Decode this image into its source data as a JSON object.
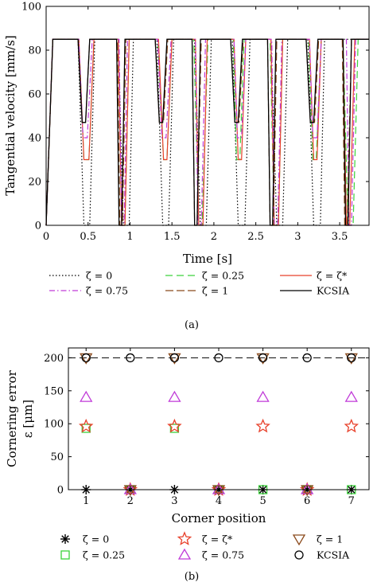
{
  "chart_data": [
    {
      "type": "line",
      "panel_label": "(a)",
      "xlabel": "Time [s]",
      "ylabel": "Tangential velocity [mm/s]",
      "xlim": [
        0,
        3.85
      ],
      "ylim": [
        0,
        100
      ],
      "xticks": [
        0,
        0.5,
        1,
        1.5,
        2,
        2.5,
        3,
        3.5
      ],
      "xtick_labels": [
        "0",
        "0.5",
        "1",
        "1.5",
        "2",
        "2.5",
        "3",
        "3.5"
      ],
      "yticks": [
        0,
        20,
        40,
        60,
        80,
        100
      ],
      "ytick_labels": [
        "0",
        "20",
        "40",
        "60",
        "80",
        "100"
      ],
      "grid": false,
      "legend_position": "below",
      "series": [
        {
          "name": "ζ = 0",
          "color": "#000000",
          "dash": "1.5,2.5",
          "x": [
            0,
            0.08,
            0.38,
            0.45,
            0.52,
            0.58,
            0.86,
            0.92,
            0.99,
            1.04,
            1.32,
            1.39,
            1.46,
            1.52,
            1.77,
            1.84,
            1.91,
            1.97,
            2.22,
            2.29,
            2.37,
            2.43,
            2.68,
            2.75,
            2.82,
            2.88,
            3.12,
            3.19,
            3.27,
            3.32,
            3.85
          ],
          "y": [
            0,
            85,
            85,
            0,
            0,
            85,
            85,
            0,
            0,
            85,
            85,
            0,
            0,
            85,
            85,
            0,
            0,
            85,
            85,
            0,
            0,
            85,
            85,
            0,
            0,
            85,
            85,
            0,
            0,
            85,
            85
          ]
        },
        {
          "name": "ζ = 0.25",
          "color": "#3cd23c",
          "dash": "9,5",
          "x": [
            0,
            0.08,
            0.39,
            0.45,
            0.51,
            0.57,
            0.86,
            0.9,
            0.94,
            0.99,
            1.33,
            1.4,
            1.44,
            1.5,
            1.76,
            1.82,
            1.86,
            1.93,
            2.23,
            2.27,
            2.31,
            2.36,
            2.67,
            2.72,
            2.77,
            2.82,
            3.13,
            3.18,
            3.22,
            3.28,
            3.54,
            3.6,
            3.66,
            3.72,
            3.85
          ],
          "y": [
            0,
            85,
            85,
            30,
            30,
            85,
            85,
            0,
            0,
            85,
            85,
            30,
            30,
            85,
            85,
            0,
            0,
            85,
            85,
            30,
            30,
            85,
            85,
            0,
            0,
            85,
            85,
            30,
            30,
            85,
            85,
            0,
            0,
            85,
            85
          ]
        },
        {
          "name": "ζ = ζ*",
          "color": "#e8402a",
          "dash": "",
          "x": [
            0,
            0.08,
            0.39,
            0.45,
            0.51,
            0.57,
            0.86,
            0.9,
            0.94,
            0.99,
            1.34,
            1.4,
            1.44,
            1.5,
            1.78,
            1.82,
            1.87,
            1.92,
            2.24,
            2.29,
            2.33,
            2.38,
            2.68,
            2.72,
            2.77,
            2.82,
            3.14,
            3.19,
            3.23,
            3.28,
            3.54,
            3.58,
            3.62,
            3.68,
            3.85
          ],
          "y": [
            0,
            85,
            85,
            30,
            30,
            85,
            85,
            0,
            0,
            85,
            85,
            30,
            30,
            85,
            85,
            0,
            0,
            85,
            85,
            30,
            30,
            85,
            85,
            0,
            0,
            85,
            85,
            30,
            30,
            85,
            85,
            0,
            0,
            85,
            85
          ]
        },
        {
          "name": "ζ = 0.75",
          "color": "#c03ad8",
          "dash": "7,3,1.5,3",
          "x": [
            0,
            0.08,
            0.39,
            0.44,
            0.49,
            0.55,
            0.87,
            0.9,
            0.93,
            0.97,
            1.33,
            1.38,
            1.43,
            1.49,
            1.78,
            1.81,
            1.85,
            1.9,
            2.24,
            2.28,
            2.33,
            2.38,
            2.69,
            2.72,
            2.76,
            2.81,
            3.14,
            3.18,
            3.23,
            3.28,
            3.58,
            3.61,
            3.64,
            3.69,
            3.85
          ],
          "y": [
            0,
            85,
            85,
            40,
            40,
            85,
            85,
            0,
            0,
            85,
            85,
            40,
            40,
            85,
            85,
            0,
            0,
            85,
            85,
            40,
            40,
            85,
            85,
            0,
            0,
            85,
            85,
            40,
            40,
            85,
            85,
            0,
            0,
            85,
            85
          ]
        },
        {
          "name": "ζ = 1",
          "color": "#8b4a1c",
          "dash": "10,4",
          "x": [
            0,
            0.08,
            0.38,
            0.43,
            0.47,
            0.52,
            0.85,
            0.88,
            0.91,
            0.95,
            1.3,
            1.35,
            1.4,
            1.45,
            1.74,
            1.77,
            1.8,
            1.85,
            2.2,
            2.25,
            2.3,
            2.35,
            2.64,
            2.67,
            2.71,
            2.75,
            3.1,
            3.15,
            3.2,
            3.25,
            3.53,
            3.56,
            3.59,
            3.64,
            3.85
          ],
          "y": [
            0,
            85,
            85,
            47,
            47,
            85,
            85,
            0,
            0,
            85,
            85,
            47,
            47,
            85,
            85,
            0,
            0,
            85,
            85,
            47,
            47,
            85,
            85,
            0,
            0,
            85,
            85,
            47,
            47,
            85,
            85,
            0,
            0,
            85,
            85
          ]
        },
        {
          "name": "KCSIA",
          "color": "#000000",
          "dash": "",
          "x": [
            0,
            0.08,
            0.38,
            0.43,
            0.47,
            0.52,
            0.84,
            0.87,
            0.9,
            0.94,
            1.3,
            1.35,
            1.39,
            1.44,
            1.74,
            1.77,
            1.8,
            1.84,
            2.2,
            2.25,
            2.29,
            2.34,
            2.64,
            2.67,
            2.7,
            2.74,
            3.1,
            3.15,
            3.19,
            3.24,
            3.54,
            3.57,
            3.6,
            3.64,
            3.85
          ],
          "y": [
            0,
            85,
            85,
            47,
            47,
            85,
            85,
            0,
            0,
            85,
            85,
            47,
            47,
            85,
            85,
            0,
            0,
            85,
            85,
            47,
            47,
            85,
            85,
            0,
            0,
            85,
            85,
            47,
            47,
            85,
            85,
            0,
            0,
            85,
            85
          ]
        }
      ]
    },
    {
      "type": "scatter",
      "panel_label": "(b)",
      "xlabel": "Corner position",
      "ylabel": "Cornering error",
      "ylabel2": "ε [μm]",
      "xlim": [
        0.6,
        7.4
      ],
      "ylim": [
        0,
        215
      ],
      "xticks": [
        1,
        2,
        3,
        4,
        5,
        6,
        7
      ],
      "xtick_labels": [
        "1",
        "2",
        "3",
        "4",
        "5",
        "6",
        "7"
      ],
      "yticks": [
        0,
        50,
        100,
        150,
        200
      ],
      "ytick_labels": [
        "0",
        "50",
        "100",
        "150",
        "200"
      ],
      "reference_line": 200,
      "grid": false,
      "legend_position": "below",
      "series": [
        {
          "name": "ζ = 0",
          "marker": "asterisk",
          "color": "#000000",
          "x": [
            1,
            2,
            3,
            4,
            5,
            6,
            7
          ],
          "y": [
            0,
            0,
            0,
            0,
            0,
            0,
            0
          ]
        },
        {
          "name": "ζ = 0.25",
          "marker": "square",
          "color": "#3cd23c",
          "x": [
            1,
            2,
            3,
            4,
            5,
            6,
            7
          ],
          "y": [
            93,
            0,
            93,
            0,
            0,
            0,
            0
          ]
        },
        {
          "name": "ζ = ζ*",
          "marker": "star",
          "color": "#e8402a",
          "x": [
            1,
            2,
            3,
            4,
            5,
            6,
            7
          ],
          "y": [
            96,
            0,
            96,
            0,
            96,
            0,
            96
          ]
        },
        {
          "name": "ζ = 0.75",
          "marker": "triangle-up",
          "color": "#c03ad8",
          "x": [
            1,
            2,
            3,
            4,
            5,
            6,
            7
          ],
          "y": [
            140,
            0,
            140,
            0,
            140,
            0,
            140
          ]
        },
        {
          "name": "ζ = 1",
          "marker": "triangle-down",
          "color": "#8b4a1c",
          "x": [
            1,
            2,
            3,
            4,
            5,
            6,
            7
          ],
          "y": [
            200,
            0,
            200,
            0,
            200,
            0,
            200
          ]
        },
        {
          "name": "KCSIA",
          "marker": "circle",
          "color": "#000000",
          "x": [
            1,
            2,
            3,
            4,
            5,
            6,
            7
          ],
          "y": [
            200,
            200,
            200,
            200,
            200,
            200,
            200
          ]
        }
      ]
    }
  ]
}
